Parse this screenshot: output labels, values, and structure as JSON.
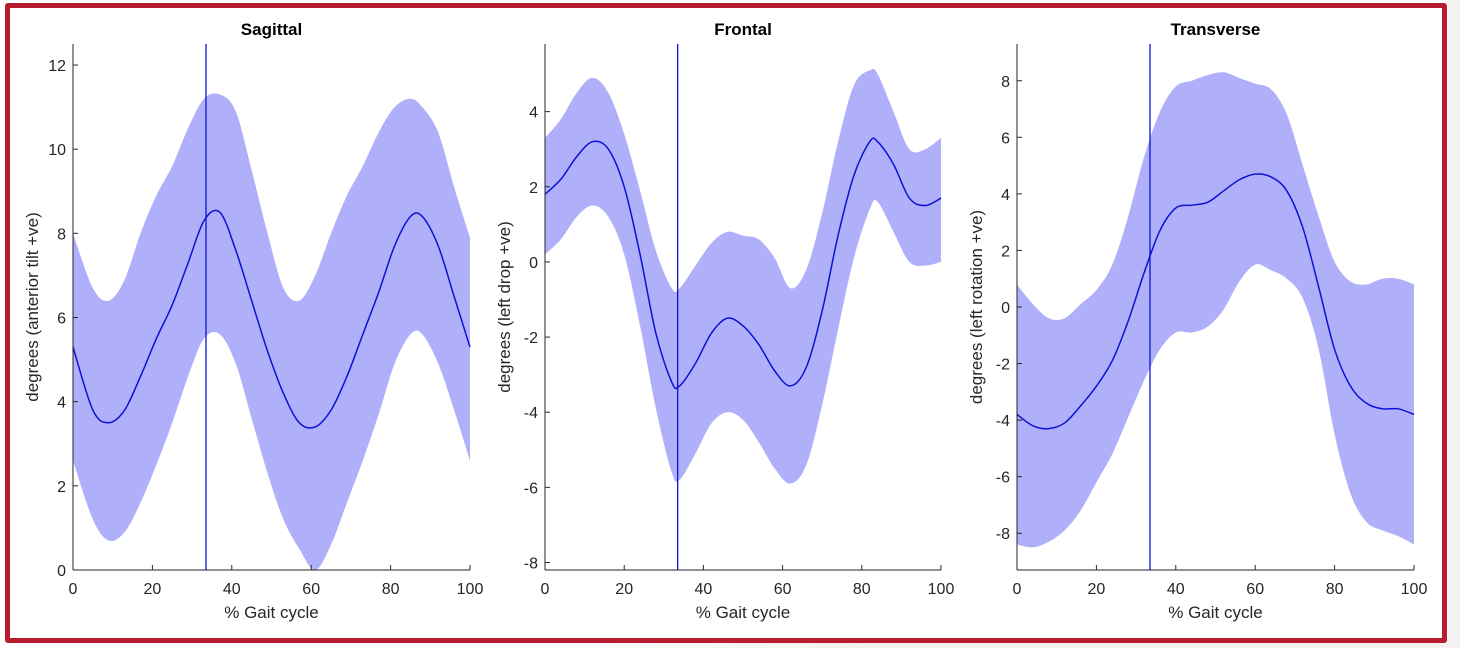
{
  "frame_color": "#b81c2e",
  "band_color": "#b0b0fa",
  "line_color": "#0b12d6",
  "chart_data": [
    {
      "type": "line",
      "title": "Sagittal",
      "xlabel": "% Gait cycle",
      "ylabel": "degrees (anterior tilt +ve)",
      "xlim": [
        0,
        100
      ],
      "ylim": [
        0,
        12.5
      ],
      "xticks": [
        0,
        20,
        40,
        60,
        80,
        100
      ],
      "yticks": [
        0,
        2,
        4,
        6,
        8,
        10,
        12
      ],
      "vline_x": 33.5,
      "x": [
        0,
        5,
        9,
        13,
        17,
        21,
        25,
        29,
        33,
        37,
        41,
        45,
        49,
        53,
        57,
        61,
        65,
        69,
        73,
        77,
        81,
        85,
        88,
        92,
        96,
        100
      ],
      "mean": [
        5.3,
        3.8,
        3.5,
        3.8,
        4.6,
        5.5,
        6.3,
        7.3,
        8.3,
        8.5,
        7.6,
        6.4,
        5.2,
        4.2,
        3.5,
        3.4,
        3.8,
        4.6,
        5.6,
        6.6,
        7.7,
        8.4,
        8.4,
        7.7,
        6.5,
        5.3
      ],
      "upper": [
        8.0,
        6.7,
        6.4,
        6.9,
        8.0,
        8.9,
        9.6,
        10.5,
        11.2,
        11.3,
        10.9,
        9.5,
        8.0,
        6.7,
        6.4,
        7.0,
        8.0,
        8.9,
        9.6,
        10.4,
        11.0,
        11.2,
        11.0,
        10.4,
        9.1,
        7.9
      ],
      "lower": [
        2.6,
        1.2,
        0.7,
        0.9,
        1.6,
        2.5,
        3.5,
        4.6,
        5.5,
        5.6,
        4.9,
        3.6,
        2.3,
        1.2,
        0.5,
        0.0,
        0.6,
        1.6,
        2.6,
        3.7,
        4.9,
        5.6,
        5.6,
        4.9,
        3.8,
        2.6
      ]
    },
    {
      "type": "line",
      "title": "Frontal",
      "xlabel": "% Gait cycle",
      "ylabel": "degrees (left drop +ve)",
      "xlim": [
        0,
        100
      ],
      "ylim": [
        -8.2,
        5.8
      ],
      "xticks": [
        0,
        20,
        40,
        60,
        80,
        100
      ],
      "yticks": [
        -8,
        -6,
        -4,
        -2,
        0,
        2,
        4
      ],
      "vline_x": 33.5,
      "x": [
        0,
        4,
        8,
        12,
        16,
        20,
        24,
        28,
        32,
        34,
        38,
        42,
        46,
        50,
        54,
        58,
        62,
        66,
        70,
        74,
        78,
        82,
        84,
        88,
        92,
        96,
        100
      ],
      "mean": [
        1.8,
        2.2,
        2.8,
        3.2,
        3.0,
        2.0,
        0.2,
        -1.9,
        -3.2,
        -3.3,
        -2.7,
        -1.9,
        -1.5,
        -1.7,
        -2.2,
        -2.9,
        -3.3,
        -2.8,
        -1.3,
        0.7,
        2.3,
        3.2,
        3.2,
        2.6,
        1.7,
        1.5,
        1.7
      ],
      "upper": [
        3.3,
        3.8,
        4.5,
        4.9,
        4.5,
        3.4,
        1.9,
        0.3,
        -0.7,
        -0.7,
        -0.1,
        0.5,
        0.8,
        0.7,
        0.6,
        0.1,
        -0.7,
        -0.2,
        1.3,
        3.2,
        4.7,
        5.1,
        5.0,
        4.0,
        3.0,
        3.0,
        3.3
      ],
      "lower": [
        0.2,
        0.6,
        1.2,
        1.5,
        1.2,
        0.2,
        -1.7,
        -3.9,
        -5.6,
        -5.8,
        -5.1,
        -4.3,
        -4.0,
        -4.2,
        -4.8,
        -5.5,
        -5.9,
        -5.4,
        -3.8,
        -1.8,
        0.1,
        1.4,
        1.6,
        0.8,
        0.0,
        -0.1,
        0.0
      ]
    },
    {
      "type": "line",
      "title": "Transverse",
      "xlabel": "% Gait cycle",
      "ylabel": "degrees (left rotation +ve)",
      "xlim": [
        0,
        100
      ],
      "ylim": [
        -9.3,
        9.3
      ],
      "xticks": [
        0,
        20,
        40,
        60,
        80,
        100
      ],
      "yticks": [
        -8,
        -6,
        -4,
        -2,
        0,
        2,
        4,
        6,
        8
      ],
      "vline_x": 33.5,
      "x": [
        0,
        4,
        8,
        12,
        16,
        20,
        24,
        28,
        32,
        36,
        40,
        44,
        48,
        52,
        56,
        60,
        64,
        68,
        72,
        76,
        80,
        84,
        88,
        92,
        96,
        100
      ],
      "mean": [
        -3.8,
        -4.2,
        -4.3,
        -4.1,
        -3.5,
        -2.8,
        -1.9,
        -0.5,
        1.2,
        2.7,
        3.5,
        3.6,
        3.7,
        4.1,
        4.5,
        4.7,
        4.6,
        4.1,
        2.8,
        0.7,
        -1.5,
        -2.8,
        -3.4,
        -3.6,
        -3.6,
        -3.8
      ],
      "upper": [
        0.8,
        0.1,
        -0.4,
        -0.4,
        0.1,
        0.6,
        1.5,
        3.2,
        5.3,
        6.9,
        7.8,
        8.0,
        8.2,
        8.3,
        8.1,
        7.9,
        7.7,
        6.8,
        5.0,
        3.2,
        1.6,
        0.9,
        0.8,
        1.0,
        1.0,
        0.8
      ],
      "lower": [
        -8.4,
        -8.5,
        -8.3,
        -7.9,
        -7.2,
        -6.2,
        -5.2,
        -3.9,
        -2.6,
        -1.5,
        -0.9,
        -0.9,
        -0.7,
        -0.1,
        0.9,
        1.5,
        1.3,
        1.0,
        0.3,
        -1.5,
        -4.5,
        -6.6,
        -7.6,
        -7.9,
        -8.1,
        -8.4
      ]
    }
  ]
}
